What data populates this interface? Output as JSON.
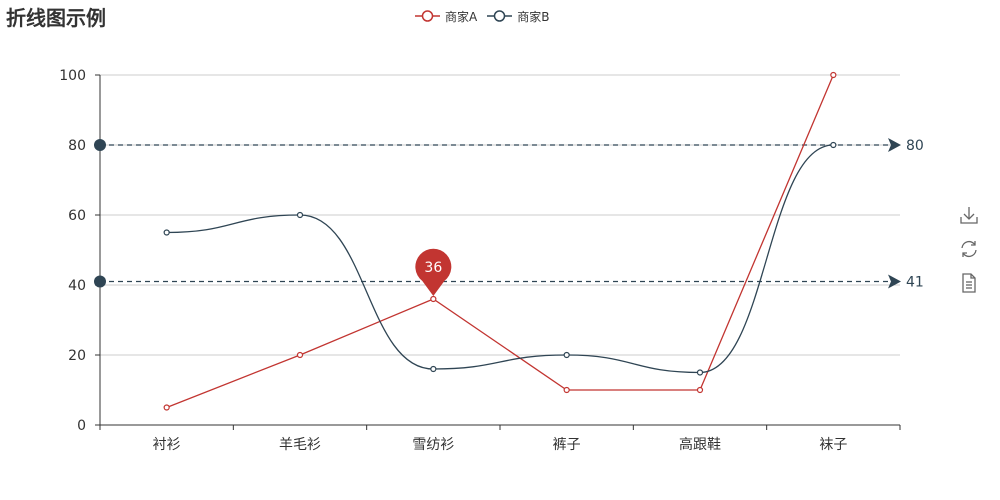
{
  "chart_data": {
    "type": "line",
    "title": "折线图示例",
    "categories": [
      "衬衫",
      "羊毛衫",
      "雪纺衫",
      "裤子",
      "高跟鞋",
      "袜子"
    ],
    "series": [
      {
        "name": "商家A",
        "values": [
          5,
          20,
          36,
          10,
          10,
          100
        ],
        "color": "#c23531",
        "smooth": false,
        "mark_point": {
          "category": "雪纺衫",
          "value": 36,
          "label": "36"
        }
      },
      {
        "name": "商家B",
        "values": [
          55,
          60,
          16,
          20,
          15,
          80
        ],
        "color": "#2f4554",
        "smooth": true,
        "mark_lines": [
          {
            "value": 80,
            "label": "80"
          },
          {
            "value": 41,
            "label": "41"
          }
        ]
      }
    ],
    "ylim": [
      0,
      100
    ],
    "y_ticks": [
      0,
      20,
      40,
      60,
      80,
      100
    ],
    "grid": "horizontal",
    "legend_position": "top-center",
    "xlabel": "",
    "ylabel": ""
  },
  "toolbox": {
    "icons": [
      "download-icon",
      "refresh-icon",
      "data-view-icon"
    ]
  }
}
